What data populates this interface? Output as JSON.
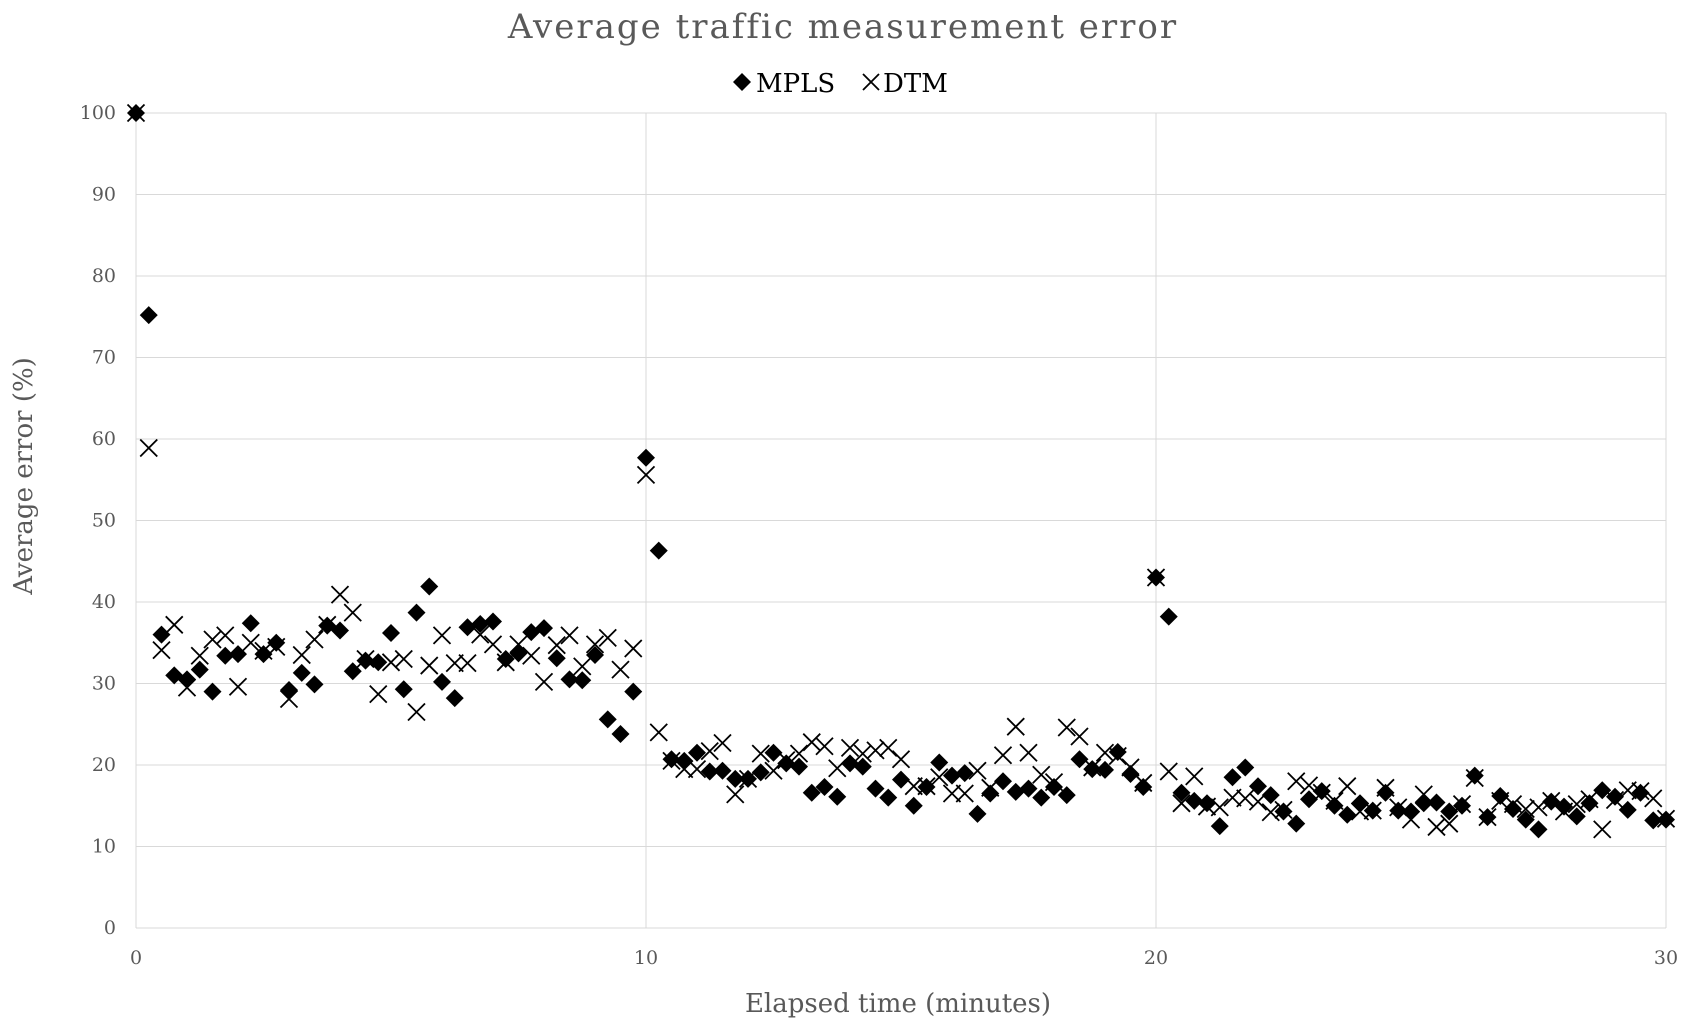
{
  "chart_data": {
    "type": "scatter",
    "title": "Average traffic measurement error",
    "xlabel": "Elapsed time (minutes)",
    "ylabel": "Average error (%)",
    "xlim": [
      0,
      30
    ],
    "ylim": [
      0,
      100
    ],
    "xticks": [
      "0",
      "10",
      "20",
      "30"
    ],
    "yticks": [
      "0",
      "10",
      "20",
      "30",
      "40",
      "50",
      "60",
      "70",
      "80",
      "90",
      "100"
    ],
    "grid": true,
    "legend_position": "top-center",
    "series": [
      {
        "name": "MPLS",
        "marker": "diamond",
        "color": "#000000",
        "x": [
          0,
          0.25,
          0.5,
          0.75,
          1,
          1.25,
          1.5,
          1.75,
          2,
          2.25,
          2.5,
          2.75,
          3,
          3.25,
          3.5,
          3.75,
          4,
          4.25,
          4.5,
          4.75,
          5,
          5.25,
          5.5,
          5.75,
          6,
          6.25,
          6.5,
          6.75,
          7,
          7.25,
          7.5,
          7.75,
          8,
          8.25,
          8.5,
          8.75,
          9,
          9.25,
          9.5,
          9.75,
          10,
          10.25,
          10.5,
          10.75,
          11,
          11.25,
          11.5,
          11.75,
          12,
          12.25,
          12.5,
          12.75,
          13,
          13.25,
          13.5,
          13.75,
          14,
          14.25,
          14.5,
          14.75,
          15,
          15.25,
          15.5,
          15.75,
          16,
          16.25,
          16.5,
          16.75,
          17,
          17.25,
          17.5,
          17.75,
          18,
          18.25,
          18.5,
          18.75,
          19,
          19.25,
          19.5,
          19.75,
          20,
          20.25,
          20.5,
          20.75,
          21,
          21.25,
          21.5,
          21.75,
          22,
          22.25,
          22.5,
          22.75,
          23,
          23.25,
          23.5,
          23.75,
          24,
          24.25,
          24.5,
          24.75,
          25,
          25.25,
          25.5,
          25.75,
          26,
          26.25,
          26.5,
          26.75,
          27,
          27.25,
          27.5,
          27.75,
          28,
          28.25,
          28.5,
          28.75,
          29,
          29.25,
          29.5,
          29.75,
          30
        ],
        "y": [
          100,
          75.2,
          36,
          31,
          30.5,
          31.7,
          29,
          33.4,
          33.6,
          37.4,
          33.6,
          35,
          29.2,
          31.3,
          29.9,
          37.1,
          36.5,
          31.5,
          32.8,
          32.6,
          36.2,
          29.3,
          38.7,
          41.9,
          30.2,
          28.2,
          36.9,
          37.3,
          37.6,
          33,
          33.7,
          36.3,
          36.8,
          33.1,
          30.5,
          30.4,
          33.5,
          25.6,
          23.8,
          29,
          57.7,
          46.3,
          20.7,
          20.5,
          21.5,
          19.2,
          19.3,
          18.3,
          18.3,
          19.1,
          21.5,
          20.2,
          19.8,
          16.6,
          17.3,
          16.1,
          20.2,
          19.8,
          17.1,
          16,
          18.2,
          15,
          17.3,
          20.3,
          18.7,
          19,
          14,
          16.5,
          18,
          16.7,
          17.1,
          16,
          17.3,
          16.3,
          20.7,
          19.5,
          19.4,
          21.6,
          18.9,
          17.3,
          43,
          38.2,
          16.6,
          15.6,
          15.3,
          12.5,
          18.5,
          19.7,
          17.4,
          16.3,
          14.3,
          12.8,
          15.8,
          16.8,
          15,
          13.9,
          15.3,
          14.4,
          16.6,
          14.4,
          14.3,
          15.3,
          15.4,
          14.3,
          15,
          18.7,
          13.6,
          16.2,
          14.6,
          13.3,
          12.1,
          15.5,
          14.9,
          13.7,
          15.3,
          16.9,
          16.1,
          14.5,
          16.6,
          13.2,
          13.3
        ]
      },
      {
        "name": "DTM",
        "marker": "x",
        "color": "#000000",
        "x": [
          0,
          0.25,
          0.5,
          0.75,
          1,
          1.25,
          1.5,
          1.75,
          2,
          2.25,
          2.5,
          2.75,
          3,
          3.25,
          3.5,
          3.75,
          4,
          4.25,
          4.5,
          4.75,
          5,
          5.25,
          5.5,
          5.75,
          6,
          6.25,
          6.5,
          6.75,
          7,
          7.25,
          7.5,
          7.75,
          8,
          8.25,
          8.5,
          8.75,
          9,
          9.25,
          9.5,
          9.75,
          10,
          10.25,
          10.5,
          10.75,
          11,
          11.25,
          11.5,
          11.75,
          12,
          12.25,
          12.5,
          12.75,
          13,
          13.25,
          13.5,
          13.75,
          14,
          14.25,
          14.5,
          14.75,
          15,
          15.25,
          15.5,
          15.75,
          16,
          16.25,
          16.5,
          16.75,
          17,
          17.25,
          17.5,
          17.75,
          18,
          18.25,
          18.5,
          18.75,
          19,
          19.25,
          19.5,
          19.75,
          20,
          20.25,
          20.5,
          20.75,
          21,
          21.25,
          21.5,
          21.75,
          22,
          22.25,
          22.5,
          22.75,
          23,
          23.25,
          23.5,
          23.75,
          24,
          24.25,
          24.5,
          24.75,
          25,
          25.25,
          25.5,
          25.75,
          26,
          26.25,
          26.5,
          26.75,
          27,
          27.25,
          27.5,
          27.75,
          28,
          28.25,
          28.5,
          28.75,
          29,
          29.25,
          29.5,
          29.75,
          30
        ],
        "y": [
          100,
          58.9,
          34.1,
          37.2,
          29.5,
          33.4,
          35.4,
          35.9,
          29.6,
          35,
          34,
          34.5,
          28.1,
          33.5,
          35.4,
          37.2,
          40.9,
          38.7,
          33,
          28.7,
          32.6,
          33,
          26.5,
          32.2,
          35.9,
          32.5,
          32.5,
          36,
          34.8,
          32.6,
          34.8,
          33.4,
          30.2,
          34.7,
          35.9,
          32.1,
          34.8,
          35.6,
          31.7,
          34.3,
          55.6,
          24,
          20.5,
          19.5,
          19.5,
          21.7,
          22.7,
          16.4,
          18.3,
          21.4,
          19.3,
          20.6,
          21.4,
          22.8,
          22.3,
          19.6,
          22.1,
          21.4,
          21.8,
          22.1,
          20.7,
          17.4,
          17.4,
          18.5,
          16.5,
          16.5,
          19.3,
          17.2,
          21.2,
          24.7,
          21.5,
          18.8,
          17.9,
          24.6,
          23.5,
          19.7,
          21.5,
          21.1,
          19.7,
          17.8,
          43,
          19.2,
          15.3,
          18.6,
          14.9,
          14.8,
          16,
          15.9,
          15.5,
          14.2,
          14.5,
          18,
          17.5,
          16.6,
          15.6,
          17.4,
          14.3,
          14.4,
          17.2,
          14.8,
          13.3,
          16.4,
          12.4,
          12.8,
          15.2,
          18.4,
          13.6,
          15.6,
          15.2,
          14.6,
          14.8,
          15.6,
          14.3,
          15.2,
          15.8,
          12.1,
          15.7,
          16.9,
          16.8,
          15.9,
          13.4
        ]
      }
    ]
  }
}
